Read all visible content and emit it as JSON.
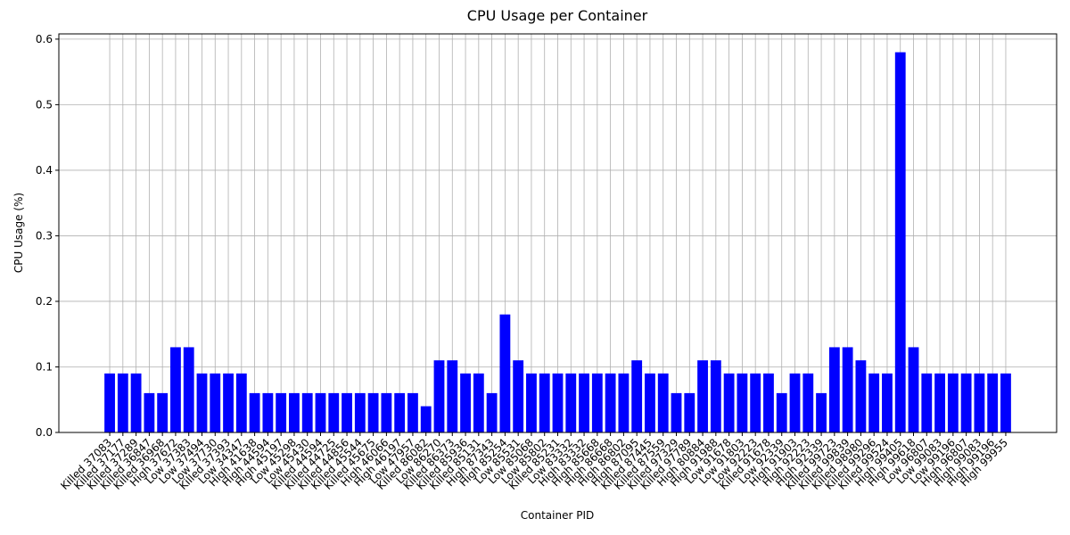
{
  "chart_data": {
    "type": "bar",
    "title": "CPU Usage per Container",
    "xlabel": "Container PID",
    "ylabel": "CPU Usage (%)",
    "categories": [
      "Killed 37083",
      "Killed 37177",
      "Killed 37289",
      "Killed 36847",
      "Killed 36968",
      "High 37672",
      "Low 37383",
      "Low 37494",
      "Low 37730",
      "Killed 37393",
      "Low 34347",
      "High 41638",
      "High 44594",
      "High 45197",
      "Low 45298",
      "Low 45430",
      "Killed 44594",
      "Killed 44725",
      "Killed 44856",
      "Killed 45544",
      "Killed 45675",
      "High 46066",
      "High 46197",
      "Low 47957",
      "Killed 86082",
      "Low 86270",
      "Killed 86373",
      "Killed 85936",
      "Killed 85131",
      "High 87343",
      "High 85254",
      "Low 85531",
      "Low 85068",
      "Low 85802",
      "Killed 85231",
      "Low 83332",
      "High 83332",
      "High 85668",
      "High 86668",
      "High 86802",
      "High 87095",
      "Killed 87445",
      "Killed 87559",
      "Killed 97329",
      "Killed 97789",
      "High 80884",
      "High 91988",
      "Low 91678",
      "Low 91803",
      "Low 92223",
      "Killed 91678",
      "Low 92339",
      "High 91903",
      "High 92223",
      "High 92339",
      "Killed 99723",
      "Killed 99839",
      "Killed 98980",
      "Killed 99296",
      "Killed 99524",
      "High 99405",
      "High 99618",
      "Low 96807",
      "Low 99083",
      "Low 99196",
      "High 96807",
      "High 99083",
      "High 99196",
      "High 99955"
    ],
    "values": [
      0.09,
      0.09,
      0.09,
      0.06,
      0.06,
      0.13,
      0.13,
      0.09,
      0.09,
      0.09,
      0.09,
      0.06,
      0.06,
      0.06,
      0.06,
      0.06,
      0.06,
      0.06,
      0.06,
      0.06,
      0.06,
      0.06,
      0.06,
      0.06,
      0.04,
      0.11,
      0.11,
      0.09,
      0.09,
      0.06,
      0.18,
      0.11,
      0.09,
      0.09,
      0.09,
      0.09,
      0.09,
      0.09,
      0.09,
      0.09,
      0.11,
      0.09,
      0.09,
      0.06,
      0.06,
      0.11,
      0.11,
      0.09,
      0.09,
      0.09,
      0.09,
      0.06,
      0.09,
      0.09,
      0.06,
      0.13,
      0.13,
      0.11,
      0.09,
      0.09,
      0.58,
      0.13,
      0.09,
      0.09,
      0.09,
      0.09,
      0.09,
      0.09,
      0.09
    ],
    "color": "#0000ff",
    "ylim": [
      0,
      0.608
    ],
    "yticks": [
      {
        "value": 0,
        "label": "0.0"
      },
      0.1,
      0.2,
      0.3,
      0.4,
      0.5,
      0.6
    ],
    "grid": true
  }
}
